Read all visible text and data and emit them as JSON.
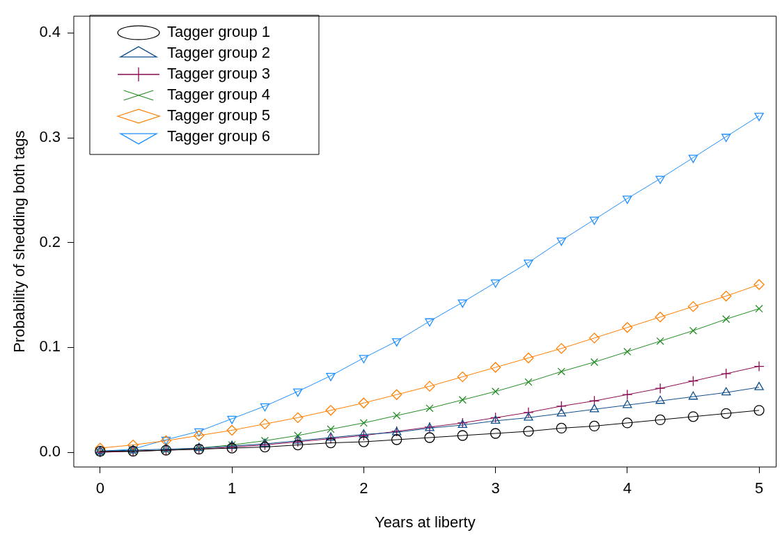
{
  "chart_data": {
    "type": "line",
    "xlabel": "Years at liberty",
    "ylabel": "Probability of shedding both tags",
    "x": [
      0,
      0.25,
      0.5,
      0.75,
      1,
      1.25,
      1.5,
      1.75,
      2,
      2.25,
      2.5,
      2.75,
      3,
      3.25,
      3.5,
      3.75,
      4,
      4.25,
      4.5,
      4.75,
      5
    ],
    "xlim": [
      -0.2,
      5.13
    ],
    "ylim": [
      -0.014,
      0.416
    ],
    "xticks": [
      0,
      1,
      2,
      3,
      4,
      5
    ],
    "yticks": [
      {
        "value": 0,
        "label": "0.0"
      },
      0.1,
      0.2,
      0.3,
      0.4
    ],
    "grid": false,
    "legend": "top left",
    "series": [
      {
        "name": "Tagger group 1",
        "color": "#000000",
        "marker": "circle",
        "values": [
          0.001,
          0.001,
          0.002,
          0.003,
          0.004,
          0.005,
          0.007,
          0.009,
          0.01,
          0.012,
          0.014,
          0.016,
          0.018,
          0.02,
          0.023,
          0.025,
          0.028,
          0.031,
          0.034,
          0.037,
          0.04
        ]
      },
      {
        "name": "Tagger group 2",
        "color": "#104e8b",
        "marker": "triangle",
        "values": [
          0.001,
          0.002,
          0.003,
          0.004,
          0.006,
          0.008,
          0.011,
          0.014,
          0.017,
          0.019,
          0.023,
          0.026,
          0.03,
          0.033,
          0.037,
          0.041,
          0.045,
          0.049,
          0.053,
          0.057,
          0.062
        ]
      },
      {
        "name": "Tagger group 3",
        "color": "#8b0a50",
        "marker": "cross",
        "values": [
          0,
          0.001,
          0.002,
          0.003,
          0.005,
          0.007,
          0.01,
          0.013,
          0.016,
          0.02,
          0.024,
          0.028,
          0.033,
          0.038,
          0.044,
          0.049,
          0.055,
          0.061,
          0.068,
          0.075,
          0.082
        ]
      },
      {
        "name": "Tagger group 4",
        "color": "#228b22",
        "marker": "x",
        "values": [
          0,
          0.001,
          0.002,
          0.004,
          0.007,
          0.011,
          0.016,
          0.022,
          0.028,
          0.035,
          0.042,
          0.05,
          0.058,
          0.067,
          0.077,
          0.086,
          0.096,
          0.106,
          0.116,
          0.127,
          0.137
        ]
      },
      {
        "name": "Tagger group 5",
        "color": "#ff7f00",
        "marker": "diamond",
        "values": [
          0.004,
          0.007,
          0.011,
          0.016,
          0.021,
          0.027,
          0.033,
          0.04,
          0.047,
          0.055,
          0.063,
          0.072,
          0.081,
          0.09,
          0.099,
          0.109,
          0.119,
          0.129,
          0.139,
          0.149,
          0.16
        ]
      },
      {
        "name": "Tagger group 6",
        "color": "#1e90ff",
        "marker": "triangle-down",
        "values": [
          0.001,
          0.003,
          0.012,
          0.02,
          0.032,
          0.044,
          0.058,
          0.073,
          0.09,
          0.106,
          0.125,
          0.143,
          0.162,
          0.181,
          0.202,
          0.222,
          0.242,
          0.261,
          0.281,
          0.301,
          0.321
        ]
      }
    ]
  }
}
